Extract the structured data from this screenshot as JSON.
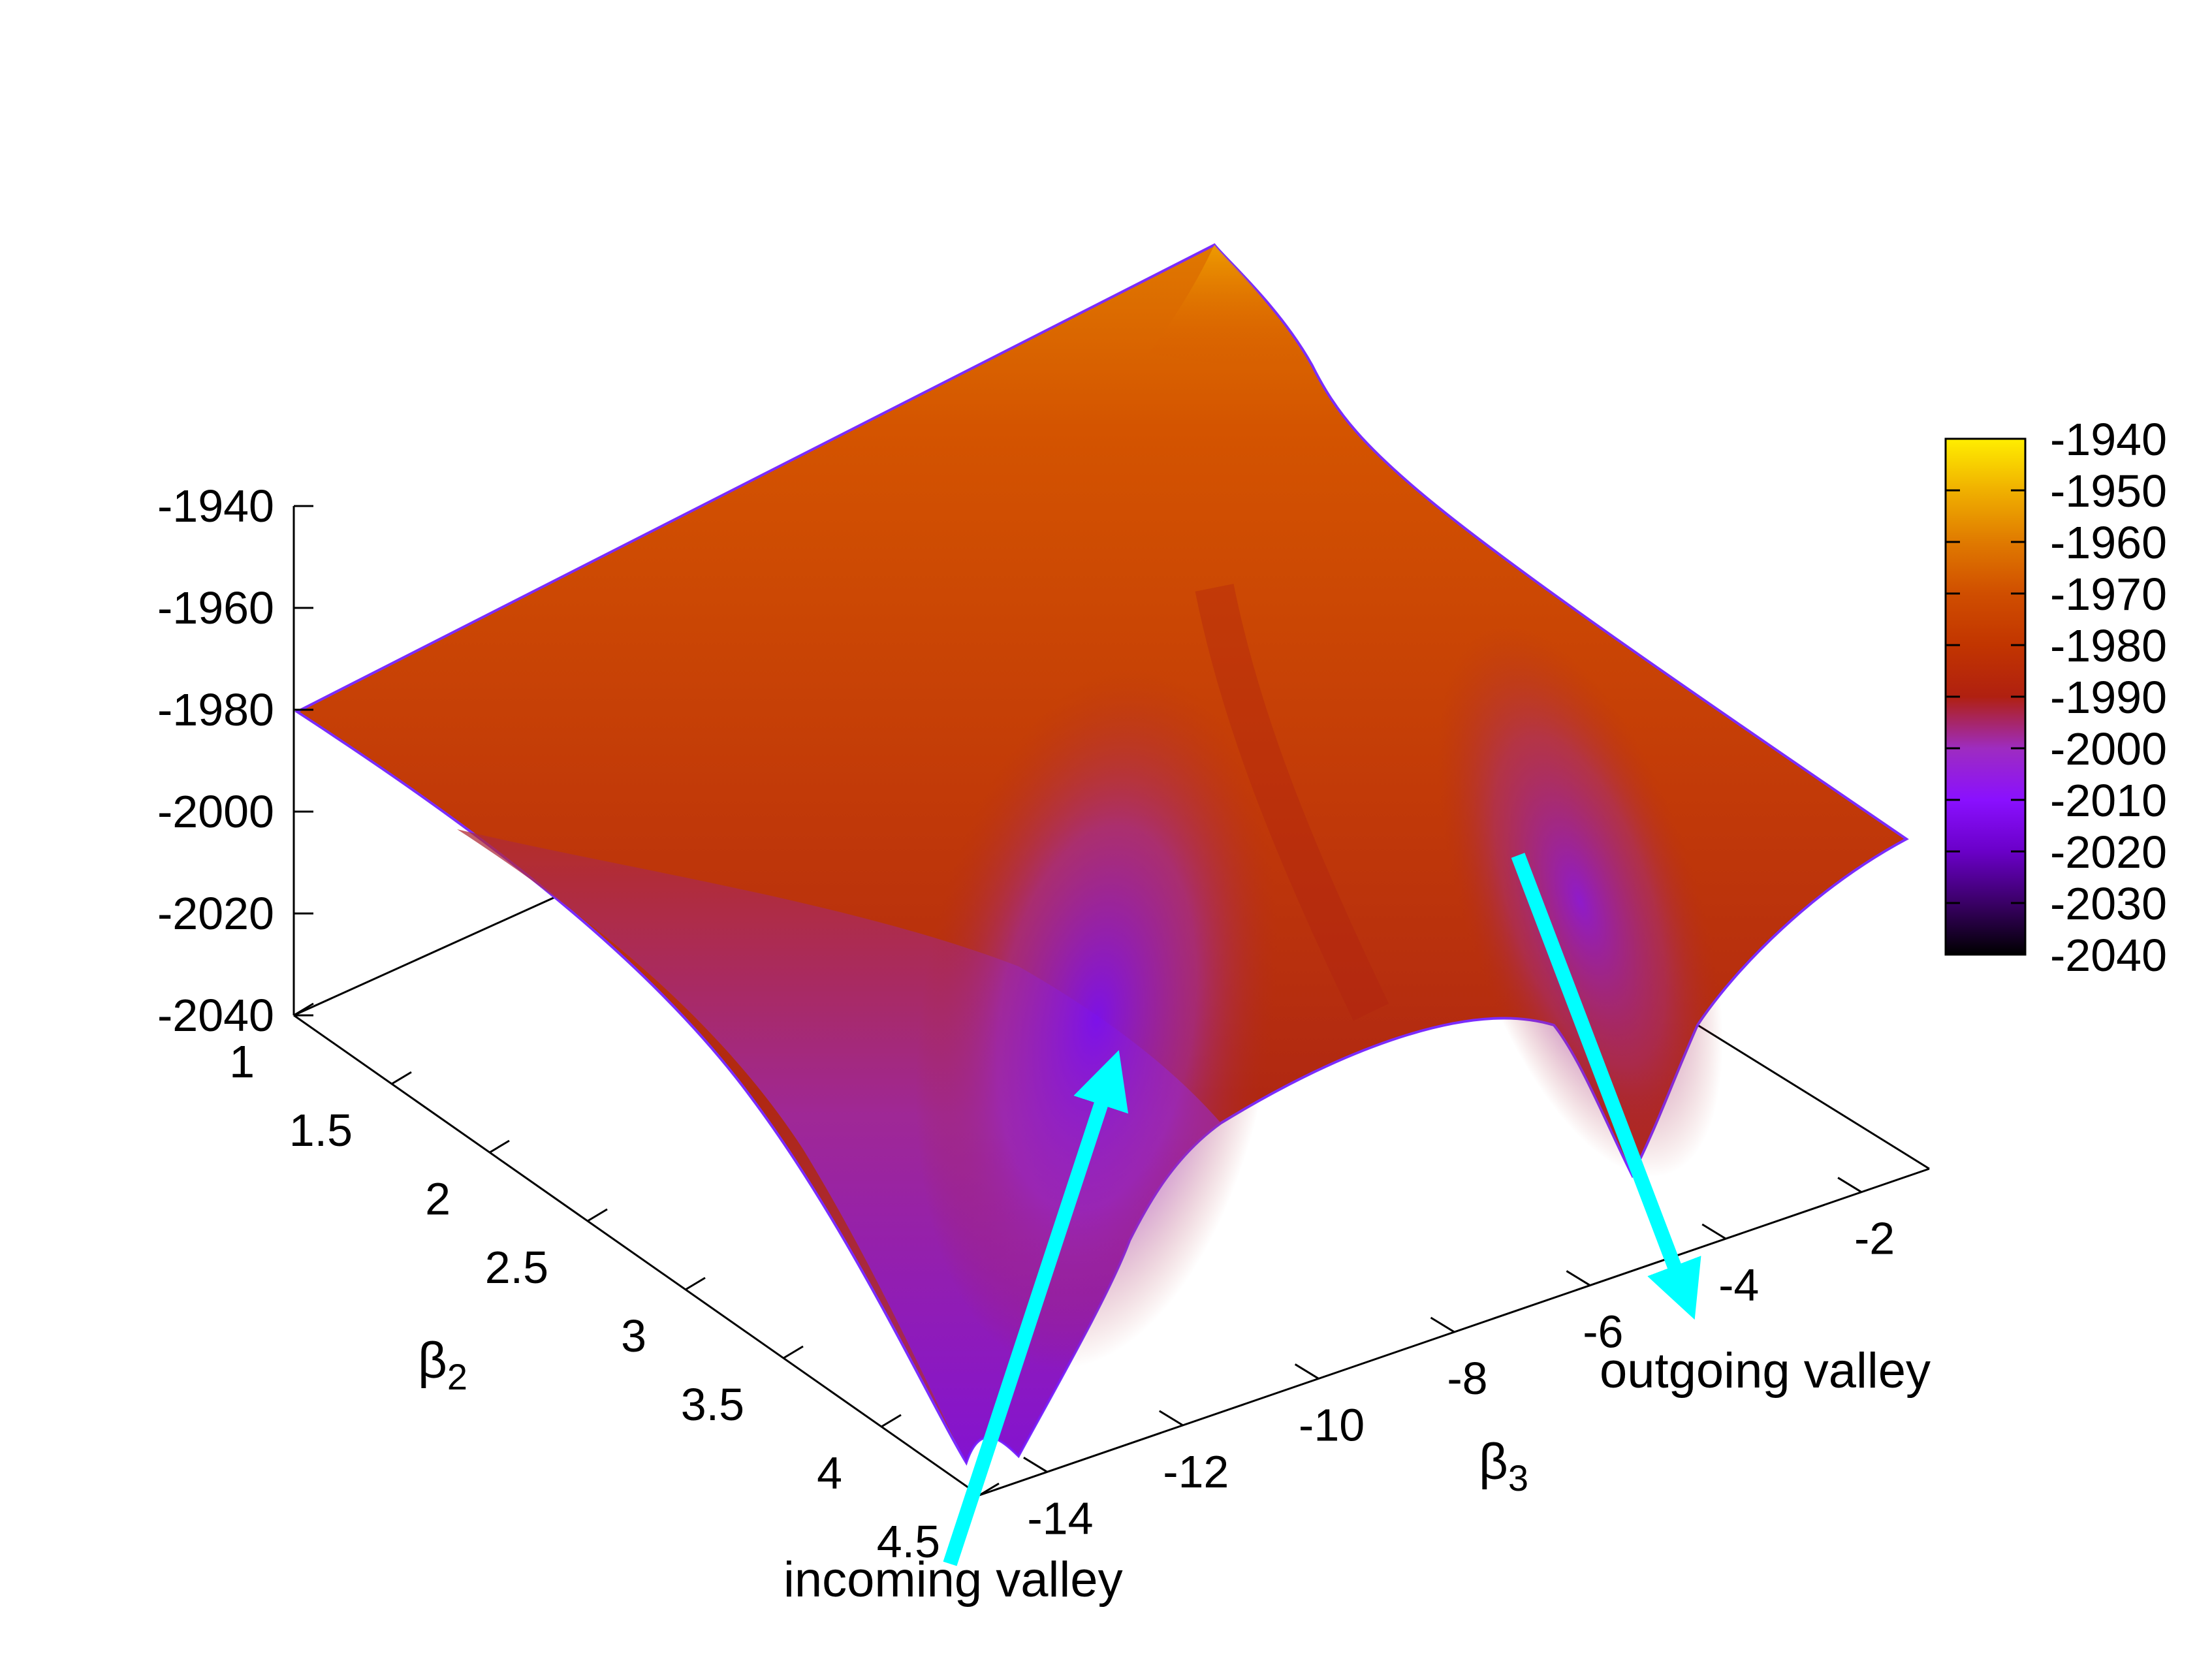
{
  "chart_data": {
    "type": "surface3d",
    "title": "",
    "xlabel": "β3",
    "ylabel": "β2",
    "zlabel": "",
    "x_axis": {
      "label_base": "β",
      "label_sub": "3",
      "ticks": [
        -14,
        -12,
        -10,
        -8,
        -6,
        -4,
        -2
      ],
      "tick_labels": [
        "-14",
        "-12",
        "-10",
        "-8",
        "-6",
        "-4",
        "-2"
      ],
      "range": [
        -15,
        -1
      ]
    },
    "y_axis": {
      "label_base": "β",
      "label_sub": "2",
      "ticks": [
        1,
        1.5,
        2,
        2.5,
        3,
        3.5,
        4,
        4.5
      ],
      "tick_labels": [
        "1",
        "1.5",
        "2",
        "2.5",
        "3",
        "3.5",
        "4",
        "4.5"
      ],
      "range": [
        1,
        4.5
      ]
    },
    "z_axis": {
      "ticks": [
        -1940,
        -1960,
        -1980,
        -2000,
        -2020,
        -2040
      ],
      "tick_labels": [
        "-1940",
        "-1960",
        "-1980",
        "-2000",
        "-2020",
        "-2040"
      ],
      "range": [
        -2040,
        -1940
      ]
    },
    "colorbar": {
      "range": [
        -2040,
        -1940
      ],
      "ticks": [
        -1940,
        -1950,
        -1960,
        -1970,
        -1980,
        -1990,
        -2000,
        -2010,
        -2020,
        -2030,
        -2040
      ],
      "tick_labels": [
        "-1940",
        "-1950",
        "-1960",
        "-1970",
        "-1980",
        "-1990",
        "-2000",
        "-2010",
        "-2020",
        "-2030",
        "-2040"
      ],
      "palette": [
        "#000000",
        "#3a0066",
        "#6a00c8",
        "#8a10ff",
        "#9e2cc0",
        "#b02010",
        "#c23500",
        "#d04e00",
        "#e07a00",
        "#f0b000",
        "#ffee00"
      ]
    },
    "surface_corners": {
      "b2_1_b3_-15": -1980,
      "b2_1_b3_-1": -1942,
      "b2_4.5_b3_-1": -1992,
      "b2_4.5_b3_-15": -2040
    },
    "annotations": [
      {
        "text": "incoming valley",
        "color": "#00ffff"
      },
      {
        "text": "outgoing valley",
        "color": "#00ffff"
      }
    ],
    "grid": false,
    "legend": "none"
  }
}
